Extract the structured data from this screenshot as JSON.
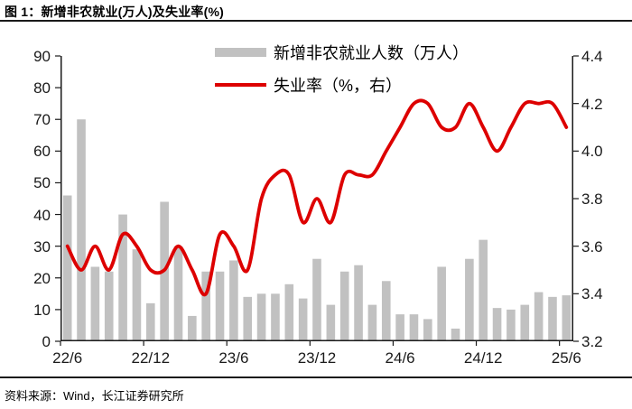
{
  "header": {
    "title": "图 1：新增非农就业(万人)及失业率(%)"
  },
  "footer": {
    "source": "资料来源：Wind，长江证券研究所"
  },
  "colors": {
    "bar": "#c1c1c1",
    "line": "#dd0000",
    "axis": "#1a1a1a"
  },
  "chart_data": {
    "type": "bar+line",
    "title": "图 1：新增非农就业(万人)及失业率(%)",
    "legend_position": "top-center",
    "grid": "off",
    "categories": [
      "22/6",
      "22/7",
      "22/8",
      "22/9",
      "22/10",
      "22/11",
      "22/12",
      "23/1",
      "23/2",
      "23/3",
      "23/4",
      "23/5",
      "23/6",
      "23/7",
      "23/8",
      "23/9",
      "23/10",
      "23/11",
      "23/12",
      "24/1",
      "24/2",
      "24/3",
      "24/4",
      "24/5",
      "24/6",
      "24/7",
      "24/8",
      "24/9",
      "24/10",
      "24/11",
      "24/12",
      "25/1",
      "25/2",
      "25/3",
      "25/4",
      "25/5",
      "25/6"
    ],
    "x_tick_labels": [
      "22/6",
      "22/12",
      "23/6",
      "23/12",
      "24/6",
      "24/12",
      "25/6"
    ],
    "y_axis_left": {
      "min": 0,
      "max": 90,
      "step": 10,
      "tick_labels": [
        "90",
        "80",
        "70",
        "60",
        "50",
        "40",
        "30",
        "20",
        "10",
        "0"
      ]
    },
    "y_axis_right": {
      "min": 3.2,
      "max": 4.4,
      "step": 0.2,
      "tick_labels": [
        "4.4",
        "4.2",
        "4.0",
        "3.8",
        "3.6",
        "3.4",
        "3.2"
      ]
    },
    "series": [
      {
        "name": "新增非农就业人数（万人）",
        "type": "bar",
        "axis": "left",
        "color": "#c1c1c1",
        "values": [
          46,
          70,
          23.5,
          22,
          40,
          29,
          12,
          44,
          30,
          8,
          22,
          22,
          25.5,
          14,
          15,
          15,
          18,
          13.5,
          26,
          11.5,
          22,
          24,
          11.5,
          19,
          8.5,
          8.5,
          7,
          23.5,
          4,
          26,
          32,
          10.5,
          10,
          11.5,
          15.5,
          14,
          14.5
        ]
      },
      {
        "name": "失业率（%，右）",
        "type": "line",
        "axis": "right",
        "color": "#dd0000",
        "values": [
          3.6,
          3.5,
          3.6,
          3.5,
          3.65,
          3.6,
          3.5,
          3.5,
          3.6,
          3.5,
          3.4,
          3.65,
          3.6,
          3.5,
          3.8,
          3.9,
          3.9,
          3.7,
          3.8,
          3.7,
          3.9,
          3.9,
          3.9,
          4.0,
          4.1,
          4.2,
          4.2,
          4.1,
          4.1,
          4.2,
          4.1,
          4.0,
          4.1,
          4.2,
          4.2,
          4.2,
          4.1
        ]
      }
    ]
  }
}
